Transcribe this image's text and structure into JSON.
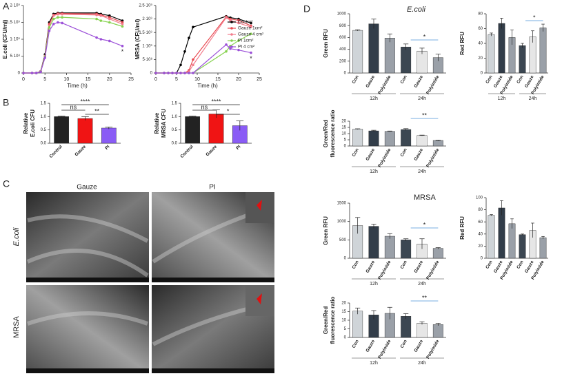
{
  "panel_labels": [
    "A",
    "B",
    "C",
    "D"
  ],
  "sem": {
    "columns": [
      "Gauze",
      "PI"
    ],
    "rows": [
      "E.coli",
      "MRSA"
    ]
  },
  "section_titles": [
    "E.coli",
    "MRSA"
  ],
  "chart_data": [
    {
      "type": "line",
      "ylabel": "E.coli (CFU/ml)",
      "xlabel": "Time (h)",
      "x": [
        0,
        2,
        3,
        4,
        5,
        6,
        7,
        8,
        9,
        17,
        18,
        20,
        23
      ],
      "xlim": [
        0,
        25
      ],
      "xticks": [
        0,
        5,
        10,
        15,
        20,
        25
      ],
      "ylim": [
        0,
        2000000000
      ],
      "yticks": [
        0,
        {
          "value": 500000000,
          "label": "5·10⁸"
        },
        {
          "value": 1000000000,
          "label": "1·10⁹"
        },
        {
          "value": 1500000000,
          "label": "1.5·10⁹"
        },
        {
          "value": 2000000000,
          "label": "2·10⁹"
        }
      ],
      "series": [
        {
          "color": "#000000",
          "values": [
            0,
            0,
            0,
            50000000,
            550000000,
            1500000000,
            1750000000,
            1780000000,
            1780000000,
            1780000000,
            1750000000,
            1700000000,
            1550000000
          ]
        },
        {
          "color": "#e8484f",
          "values": [
            0,
            0,
            0,
            50000000,
            500000000,
            1450000000,
            1720000000,
            1760000000,
            1760000000,
            1750000000,
            1720000000,
            1650000000,
            1500000000
          ]
        },
        {
          "color": "#f27c8c",
          "values": [
            0,
            0,
            0,
            40000000,
            500000000,
            1400000000,
            1700000000,
            1740000000,
            1740000000,
            1720000000,
            1700000000,
            1600000000,
            1450000000
          ]
        },
        {
          "color": "#86d24f",
          "values": [
            0,
            0,
            0,
            40000000,
            480000000,
            1350000000,
            1600000000,
            1650000000,
            1650000000,
            1600000000,
            1550000000,
            1500000000,
            1380000000
          ]
        },
        {
          "color": "#9b4fd8",
          "values": [
            0,
            0,
            0,
            30000000,
            450000000,
            1250000000,
            1450000000,
            1500000000,
            1480000000,
            1050000000,
            1000000000,
            950000000,
            800000000
          ]
        }
      ],
      "annotations": [
        "*"
      ]
    },
    {
      "type": "line",
      "ylabel": "MRSA (CFU/ml)",
      "xlabel": "Time (h)",
      "x": [
        0,
        2,
        3,
        4,
        5,
        6,
        7,
        8,
        9,
        17,
        18,
        20,
        23
      ],
      "xlim": [
        0,
        25
      ],
      "xticks": [
        0,
        5,
        10,
        15,
        20,
        25
      ],
      "ylim": [
        0,
        2500000000
      ],
      "yticks": [
        0,
        {
          "value": 500000000,
          "label": "5·10⁸"
        },
        {
          "value": 1000000000,
          "label": "1·10⁹"
        },
        {
          "value": 1500000000,
          "label": "1.5·10⁹"
        },
        {
          "value": 2000000000,
          "label": "2·10⁹"
        },
        {
          "value": 2500000000,
          "label": "2.5·10⁹"
        }
      ],
      "legend": "upper right",
      "series": [
        {
          "name": "Control",
          "color": "#000000",
          "values": [
            0,
            0,
            0,
            0,
            0,
            300000000,
            800000000,
            1300000000,
            1700000000,
            2100000000,
            2050000000,
            2000000000,
            1850000000
          ]
        },
        {
          "name": "Gauze 1cm²",
          "color": "#e8484f",
          "values": [
            0,
            0,
            0,
            0,
            0,
            0,
            0,
            100000000,
            500000000,
            2080000000,
            2000000000,
            1950000000,
            1750000000
          ]
        },
        {
          "name": "Gauze 4 cm²",
          "color": "#f27c8c",
          "values": [
            0,
            0,
            0,
            0,
            0,
            0,
            0,
            50000000,
            300000000,
            2050000000,
            1950000000,
            1850000000,
            1700000000
          ]
        },
        {
          "name": "PI 1cm²",
          "color": "#86d24f",
          "values": [
            0,
            0,
            0,
            0,
            0,
            0,
            0,
            0,
            0,
            800000000,
            1000000000,
            1200000000,
            1450000000
          ]
        },
        {
          "name": "PI 4 cm²",
          "color": "#9b4fd8",
          "values": [
            0,
            0,
            0,
            0,
            0,
            0,
            0,
            0,
            0,
            1050000000,
            900000000,
            850000000,
            750000000
          ]
        }
      ],
      "annotations": [
        "*"
      ]
    },
    {
      "type": "bar",
      "ylabel": [
        "Relative",
        "E.coli CFU"
      ],
      "categories": [
        "Control",
        "Gauze",
        "PI"
      ],
      "values": [
        1.0,
        0.93,
        0.57
      ],
      "errors": [
        0.02,
        0.07,
        0.04
      ],
      "colors": [
        "#222222",
        "#f01414",
        "#8a5cf5"
      ],
      "ylim": [
        0,
        1.5
      ],
      "yticks": [
        {
          "value": 0,
          "label": "0.0"
        },
        0.5,
        {
          "value": 1,
          "label": "1.0"
        },
        1.5
      ],
      "annotations": [
        "ns",
        "****",
        "**"
      ]
    },
    {
      "type": "bar",
      "ylabel": [
        "Relative",
        "MRSA CFU"
      ],
      "categories": [
        "Control",
        "Gauze",
        "PI"
      ],
      "values": [
        1.0,
        1.1,
        0.66
      ],
      "errors": [
        0.02,
        0.15,
        0.18
      ],
      "colors": [
        "#222222",
        "#f01414",
        "#8a5cf5"
      ],
      "ylim": [
        0,
        1.5
      ],
      "yticks": [
        {
          "value": 0,
          "label": "0.0"
        },
        0.5,
        {
          "value": 1,
          "label": "1.0"
        },
        1.5
      ],
      "annotations": [
        "ns",
        "****",
        "*"
      ]
    },
    {
      "type": "bar",
      "ylabel": [
        "Green RFU"
      ],
      "categories": [
        "Con",
        "Gauze",
        "Polyimide",
        "Con",
        "Gauze",
        "Polyimide"
      ],
      "groups": [
        "12h",
        "24h"
      ],
      "values": [
        720,
        830,
        590,
        440,
        370,
        260
      ],
      "errors": [
        10,
        80,
        70,
        50,
        50,
        60
      ],
      "colors": [
        "#cfd4d8",
        "#323d49",
        "#9aa0a8",
        "#3c4752",
        "#e6e6e6",
        "#9aa0a8"
      ],
      "ylim": [
        0,
        1000
      ],
      "yticks": [
        0,
        200,
        400,
        600,
        800,
        1000
      ],
      "annotations": [
        "*"
      ]
    },
    {
      "type": "bar",
      "ylabel": [
        "Red RFU"
      ],
      "categories": [
        "Con",
        "Gauze",
        "Polyimide",
        "Con",
        "Gauze",
        "Polyimide"
      ],
      "groups": [
        "12h",
        "24h"
      ],
      "values": [
        52,
        67,
        48,
        37,
        49,
        61
      ],
      "errors": [
        2,
        7,
        10,
        3,
        8,
        5
      ],
      "colors": [
        "#cfd4d8",
        "#323d49",
        "#9aa0a8",
        "#3c4752",
        "#e6e6e6",
        "#9aa0a8"
      ],
      "ylim": [
        0,
        80
      ],
      "yticks": [
        0,
        20,
        40,
        60,
        80
      ],
      "annotations": [
        "*"
      ]
    },
    {
      "type": "bar",
      "ylabel": [
        "Green/Red",
        "fluorescence ratio"
      ],
      "categories": [
        "Con",
        "Gauze",
        "Polyimide",
        "Con",
        "Gauze",
        "Polyimide"
      ],
      "groups": [
        "12h",
        "24h"
      ],
      "values": [
        13.6,
        12.2,
        11.8,
        13.3,
        8.5,
        4.5
      ],
      "errors": [
        0.3,
        0.5,
        0.3,
        0.7,
        0.3,
        0.3
      ],
      "colors": [
        "#cfd4d8",
        "#323d49",
        "#9aa0a8",
        "#3c4752",
        "#e6e6e6",
        "#9aa0a8"
      ],
      "ylim": [
        0,
        20
      ],
      "yticks": [
        0,
        5,
        10,
        15,
        20
      ],
      "annotations": [
        "**"
      ]
    },
    {
      "type": "bar",
      "ylabel": [
        "Green RFU"
      ],
      "categories": [
        "Con",
        "Gauze",
        "Polyimide",
        "Con",
        "Gauze",
        "Polyimide"
      ],
      "groups": [
        "12h",
        "24h"
      ],
      "values": [
        890,
        870,
        600,
        500,
        390,
        270
      ],
      "errors": [
        220,
        60,
        70,
        30,
        140,
        20
      ],
      "colors": [
        "#cfd4d8",
        "#323d49",
        "#9aa0a8",
        "#3c4752",
        "#e6e6e6",
        "#9aa0a8"
      ],
      "ylim": [
        0,
        1500
      ],
      "yticks": [
        0,
        500,
        1000,
        1500
      ],
      "annotations": [
        "*"
      ]
    },
    {
      "type": "bar",
      "ylabel": [
        "Red RFU"
      ],
      "categories": [
        "Con",
        "Gauze",
        "Polyimide",
        "Con",
        "Gauze",
        "Polyimide"
      ],
      "values": [
        71,
        83,
        57,
        39,
        46,
        34
      ],
      "errors": [
        1,
        12,
        8,
        1,
        12,
        2
      ],
      "colors": [
        "#cfd4d8",
        "#323d49",
        "#9aa0a8",
        "#3c4752",
        "#e6e6e6",
        "#9aa0a8"
      ],
      "ylim": [
        0,
        100
      ],
      "yticks": [
        0,
        20,
        40,
        60,
        80,
        100
      ]
    },
    {
      "type": "bar",
      "ylabel": [
        "Green/Red",
        "fluorescence ratio"
      ],
      "categories": [
        "Con",
        "Gauze",
        "Polyimide",
        "Con",
        "Gauze",
        "Polyimide"
      ],
      "groups": [
        "12h",
        "24h"
      ],
      "values": [
        15.3,
        13.1,
        14,
        12.3,
        8.3,
        7.5
      ],
      "errors": [
        1.8,
        2.5,
        3.5,
        1.5,
        0.8,
        0.7
      ],
      "colors": [
        "#cfd4d8",
        "#323d49",
        "#9aa0a8",
        "#3c4752",
        "#e6e6e6",
        "#9aa0a8"
      ],
      "ylim": [
        0,
        20
      ],
      "yticks": [
        0,
        5,
        10,
        15,
        20
      ],
      "annotations": [
        "**"
      ]
    }
  ]
}
